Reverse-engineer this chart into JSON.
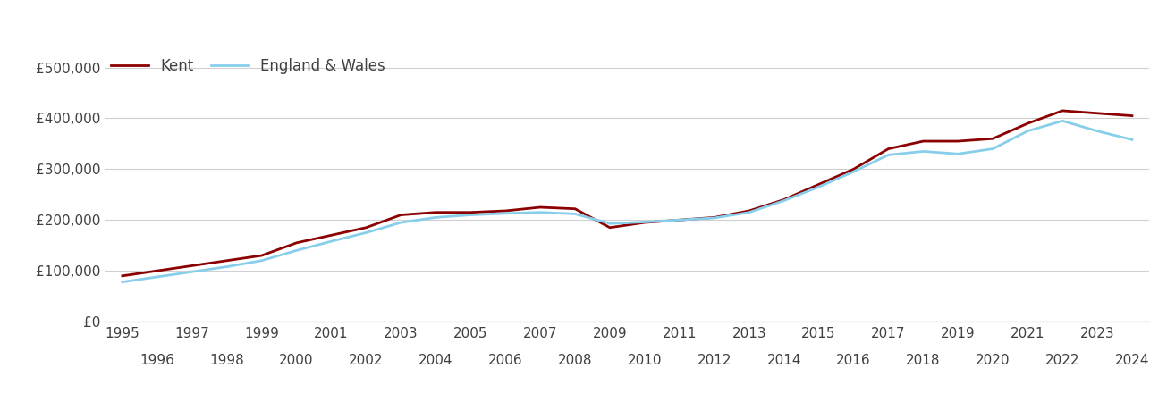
{
  "kent": {
    "years": [
      1995,
      1996,
      1997,
      1998,
      1999,
      2000,
      2001,
      2002,
      2003,
      2004,
      2005,
      2006,
      2007,
      2008,
      2009,
      2010,
      2011,
      2012,
      2013,
      2014,
      2015,
      2016,
      2017,
      2018,
      2019,
      2020,
      2021,
      2022,
      2023,
      2024
    ],
    "values": [
      90000,
      100000,
      110000,
      120000,
      130000,
      155000,
      170000,
      185000,
      210000,
      215000,
      215000,
      218000,
      225000,
      222000,
      185000,
      195000,
      200000,
      205000,
      218000,
      240000,
      270000,
      300000,
      340000,
      355000,
      355000,
      360000,
      390000,
      415000,
      410000,
      405000
    ]
  },
  "england_wales": {
    "years": [
      1995,
      1996,
      1997,
      1998,
      1999,
      2000,
      2001,
      2002,
      2003,
      2004,
      2005,
      2006,
      2007,
      2008,
      2009,
      2010,
      2011,
      2012,
      2013,
      2014,
      2015,
      2016,
      2017,
      2018,
      2019,
      2020,
      2021,
      2022,
      2023,
      2024
    ],
    "values": [
      78000,
      88000,
      98000,
      108000,
      120000,
      140000,
      158000,
      175000,
      195000,
      205000,
      210000,
      213000,
      215000,
      212000,
      193000,
      196000,
      200000,
      204000,
      215000,
      238000,
      265000,
      295000,
      328000,
      335000,
      330000,
      340000,
      375000,
      395000,
      375000,
      358000
    ]
  },
  "kent_color": "#8B0000",
  "ew_color": "#87CEEB",
  "line_width": 2.0,
  "legend_labels": [
    "Kent",
    "England & Wales"
  ],
  "yticks": [
    0,
    100000,
    200000,
    300000,
    400000,
    500000
  ],
  "ytick_labels": [
    "£0",
    "£100,000",
    "£200,000",
    "£300,000",
    "£400,000",
    "£500,000"
  ],
  "xticks_odd": [
    1995,
    1997,
    1999,
    2001,
    2003,
    2005,
    2007,
    2009,
    2011,
    2013,
    2015,
    2017,
    2019,
    2021,
    2023
  ],
  "xticks_even": [
    1996,
    1998,
    2000,
    2002,
    2004,
    2006,
    2008,
    2010,
    2012,
    2014,
    2016,
    2018,
    2020,
    2022,
    2024
  ],
  "ylim": [
    0,
    530000
  ],
  "xlim": [
    1994.5,
    2024.5
  ],
  "background_color": "#ffffff",
  "grid_color": "#d0d0d0",
  "tick_label_color": "#404040",
  "font_size_tick": 11,
  "font_size_legend": 12
}
